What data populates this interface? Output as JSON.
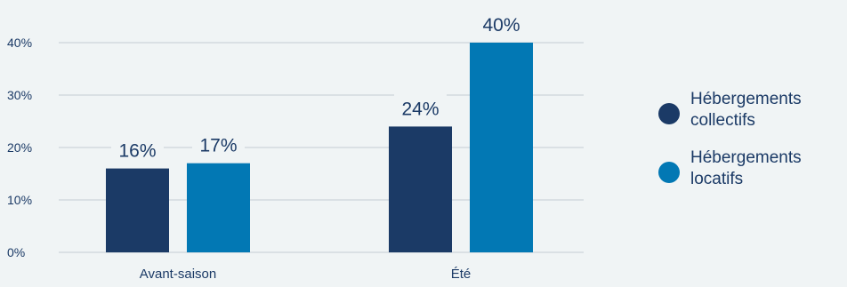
{
  "chart_data": {
    "type": "bar",
    "categories": [
      "Avant-saison",
      "Été"
    ],
    "series": [
      {
        "name": "Hébergements collectifs",
        "color": "#1b3a66",
        "values": [
          16,
          24
        ],
        "labels": [
          "16%",
          "24%"
        ]
      },
      {
        "name": "Hébergements locatifs",
        "color": "#0278b4",
        "values": [
          17,
          40
        ],
        "labels": [
          "17%",
          "40%"
        ]
      }
    ],
    "ylim": [
      0,
      40
    ],
    "yticks": [
      0,
      10,
      20,
      30,
      40
    ],
    "ytick_labels": [
      "0%",
      "10%",
      "20%",
      "30%",
      "40%"
    ],
    "grid": true,
    "legend_position": "right"
  }
}
